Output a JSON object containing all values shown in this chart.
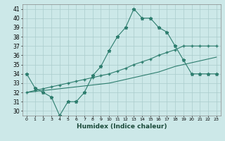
{
  "title": "",
  "xlabel": "Humidex (Indice chaleur)",
  "x": [
    0,
    1,
    2,
    3,
    4,
    5,
    6,
    7,
    8,
    9,
    10,
    11,
    12,
    13,
    14,
    15,
    16,
    17,
    18,
    19,
    20,
    21,
    22,
    23
  ],
  "line1": [
    34,
    32.5,
    32,
    31.5,
    29.5,
    31,
    31,
    32,
    33.8,
    34.8,
    36.5,
    38,
    39,
    41,
    40,
    40,
    39,
    38.5,
    37,
    35.5,
    34,
    34,
    34,
    34
  ],
  "line2": [
    32.0,
    32.2,
    32.4,
    32.6,
    32.8,
    33.0,
    33.2,
    33.4,
    33.6,
    33.8,
    34.0,
    34.3,
    34.6,
    35.0,
    35.3,
    35.6,
    36.0,
    36.3,
    36.6,
    37.0,
    37.0,
    37.0,
    37.0,
    37.0
  ],
  "line3": [
    32.0,
    32.1,
    32.2,
    32.3,
    32.4,
    32.5,
    32.6,
    32.7,
    32.8,
    32.9,
    33.0,
    33.2,
    33.4,
    33.6,
    33.8,
    34.0,
    34.2,
    34.5,
    34.8,
    35.0,
    35.2,
    35.4,
    35.6,
    35.8
  ],
  "line_color": "#2d7d6e",
  "bg_color": "#cce8e8",
  "grid_color": "#aacccc",
  "ylim": [
    29.5,
    41.5
  ],
  "yticks": [
    30,
    31,
    32,
    33,
    34,
    35,
    36,
    37,
    38,
    39,
    40,
    41
  ],
  "xticks": [
    0,
    1,
    2,
    3,
    4,
    5,
    6,
    7,
    8,
    9,
    10,
    11,
    12,
    13,
    14,
    15,
    16,
    17,
    18,
    19,
    20,
    21,
    22,
    23
  ]
}
